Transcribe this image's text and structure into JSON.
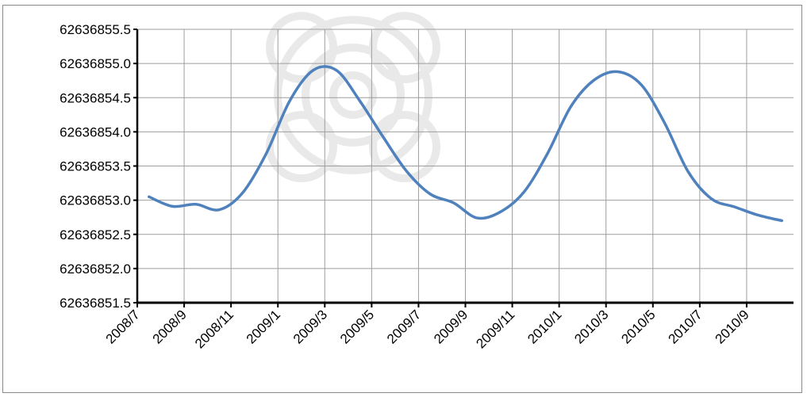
{
  "chart_data": {
    "type": "line",
    "title": "",
    "xlabel": "",
    "ylabel": "",
    "ylim": [
      62636851.5,
      62636855.5
    ],
    "yticks": [
      "62636855.5",
      "62636855.0",
      "62636854.5",
      "62636854.0",
      "62636853.5",
      "62636853.0",
      "62636852.5",
      "62636852.0",
      "62636851.5"
    ],
    "xtick_labels": [
      "2008/7",
      "2008/9",
      "2008/11",
      "2009/1",
      "2009/3",
      "2009/5",
      "2009/7",
      "2009/9",
      "2009/11",
      "2010/1",
      "2010/3",
      "2010/5",
      "2010/7",
      "2010/9"
    ],
    "x": [
      "2008/7",
      "2008/8",
      "2008/9",
      "2008/10",
      "2008/11",
      "2008/12",
      "2009/1",
      "2009/2",
      "2009/3",
      "2009/4",
      "2009/5",
      "2009/6",
      "2009/7",
      "2009/8",
      "2009/9",
      "2009/10",
      "2009/11",
      "2009/12",
      "2010/1",
      "2010/2",
      "2010/3",
      "2010/4",
      "2010/5",
      "2010/6",
      "2010/7",
      "2010/8",
      "2010/9",
      "2010/10"
    ],
    "series": [
      {
        "values": [
          62636853.05,
          62636852.91,
          62636852.94,
          62636852.86,
          62636853.11,
          62636853.68,
          62636854.45,
          62636854.9,
          62636854.9,
          62636854.45,
          62636853.92,
          62636853.42,
          62636853.09,
          62636852.96,
          62636852.74,
          62636852.83,
          62636853.12,
          62636853.68,
          62636854.37,
          62636854.76,
          62636854.88,
          62636854.69,
          62636854.13,
          62636853.42,
          62636853.02,
          62636852.9,
          62636852.78,
          62636852.7
        ],
        "color": "#4f81bd"
      }
    ],
    "grid": true,
    "legend": "none"
  }
}
